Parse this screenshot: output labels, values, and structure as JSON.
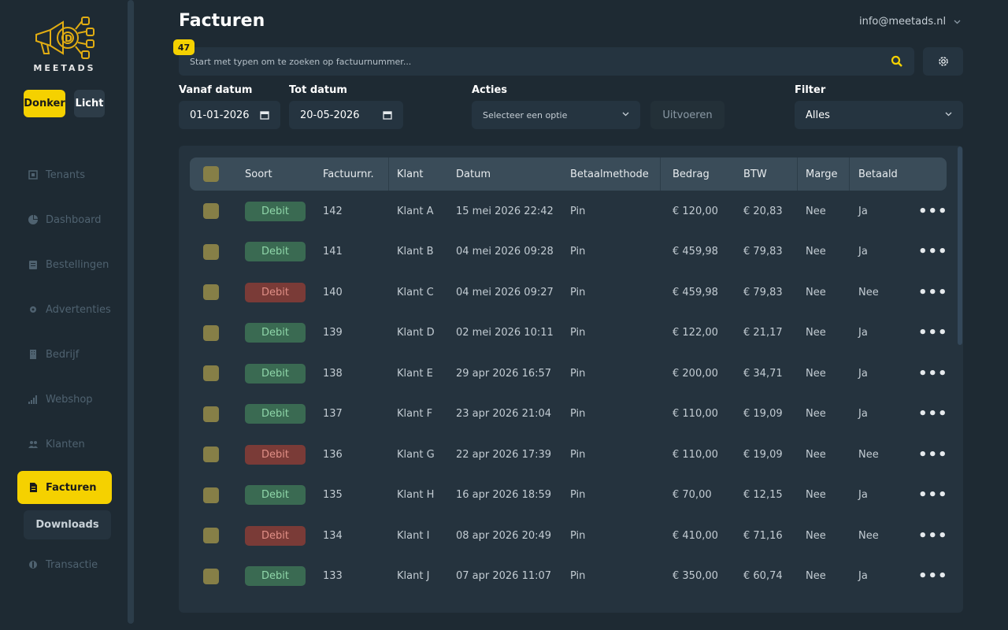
{
  "brand": {
    "name": "MEETADS",
    "accent": "#f5d100"
  },
  "theme": {
    "dark_label": "Donker",
    "light_label": "Licht"
  },
  "sidebar": {
    "items": [
      {
        "label": "Tenants",
        "icon": "building-icon"
      },
      {
        "label": "Dashboard",
        "icon": "pie-chart-icon"
      },
      {
        "label": "Bestellingen",
        "icon": "clipboard-icon"
      },
      {
        "label": "Advertenties",
        "icon": "gear-icon"
      },
      {
        "label": "Bedrijf",
        "icon": "company-icon"
      },
      {
        "label": "Webshop",
        "icon": "bar-signal-icon"
      },
      {
        "label": "Klanten",
        "icon": "people-icon"
      },
      {
        "label": "Facturen",
        "icon": "invoice-icon",
        "active": true
      },
      {
        "label": "Transactie",
        "icon": "coins-icon"
      }
    ],
    "sub_item": "Downloads"
  },
  "header": {
    "title": "Facturen",
    "user_email": "info@meetads.nl",
    "count_badge": "47"
  },
  "search": {
    "placeholder": "Start met typen om te zoeken op factuurnummer..."
  },
  "filters": {
    "from_label": "Vanaf datum",
    "from_value": "01-01-2026",
    "to_label": "Tot datum",
    "to_value": "20-05-2026",
    "actions_label": "Acties",
    "actions_placeholder": "Selecteer een optie",
    "run_label": "Uitvoeren",
    "filter_label": "Filter",
    "filter_value": "Alles"
  },
  "table": {
    "columns": [
      "Soort",
      "Factuurnr.",
      "Klant",
      "Datum",
      "Betaalmethode",
      "Bedrag",
      "BTW",
      "Marge",
      "Betaald"
    ],
    "rows": [
      {
        "soort": "Debit",
        "status": "paid",
        "nr": "142",
        "klant": "Klant A",
        "datum": "15 mei 2026 22:42",
        "methode": "Pin",
        "bedrag": "€ 120,00",
        "btw": "€ 20,83",
        "marge": "Nee",
        "betaald": "Ja"
      },
      {
        "soort": "Debit",
        "status": "paid",
        "nr": "141",
        "klant": "Klant B",
        "datum": "04 mei 2026 09:28",
        "methode": "Pin",
        "bedrag": "€ 459,98",
        "btw": "€ 79,83",
        "marge": "Nee",
        "betaald": "Ja"
      },
      {
        "soort": "Debit",
        "status": "unpaid",
        "nr": "140",
        "klant": "Klant C",
        "datum": "04 mei 2026 09:27",
        "methode": "Pin",
        "bedrag": "€ 459,98",
        "btw": "€ 79,83",
        "marge": "Nee",
        "betaald": "Nee"
      },
      {
        "soort": "Debit",
        "status": "paid",
        "nr": "139",
        "klant": "Klant D",
        "datum": "02 mei 2026 10:11",
        "methode": "Pin",
        "bedrag": "€ 122,00",
        "btw": "€ 21,17",
        "marge": "Nee",
        "betaald": "Ja"
      },
      {
        "soort": "Debit",
        "status": "paid",
        "nr": "138",
        "klant": "Klant E",
        "datum": "29 apr 2026 16:57",
        "methode": "Pin",
        "bedrag": "€ 200,00",
        "btw": "€ 34,71",
        "marge": "Nee",
        "betaald": "Ja"
      },
      {
        "soort": "Debit",
        "status": "paid",
        "nr": "137",
        "klant": "Klant F",
        "datum": "23 apr 2026 21:04",
        "methode": "Pin",
        "bedrag": "€ 110,00",
        "btw": "€ 19,09",
        "marge": "Nee",
        "betaald": "Ja"
      },
      {
        "soort": "Debit",
        "status": "unpaid",
        "nr": "136",
        "klant": "Klant G",
        "datum": "22 apr 2026 17:39",
        "methode": "Pin",
        "bedrag": "€ 110,00",
        "btw": "€ 19,09",
        "marge": "Nee",
        "betaald": "Nee"
      },
      {
        "soort": "Debit",
        "status": "paid",
        "nr": "135",
        "klant": "Klant H",
        "datum": "16 apr 2026 18:59",
        "methode": "Pin",
        "bedrag": "€ 70,00",
        "btw": "€ 12,15",
        "marge": "Nee",
        "betaald": "Ja"
      },
      {
        "soort": "Debit",
        "status": "unpaid",
        "nr": "134",
        "klant": "Klant I",
        "datum": "08 apr 2026 20:49",
        "methode": "Pin",
        "bedrag": "€ 410,00",
        "btw": "€ 71,16",
        "marge": "Nee",
        "betaald": "Nee"
      },
      {
        "soort": "Debit",
        "status": "paid",
        "nr": "133",
        "klant": "Klant J",
        "datum": "07 apr 2026 11:07",
        "methode": "Pin",
        "bedrag": "€ 350,00",
        "btw": "€ 60,74",
        "marge": "Nee",
        "betaald": "Ja"
      }
    ]
  }
}
